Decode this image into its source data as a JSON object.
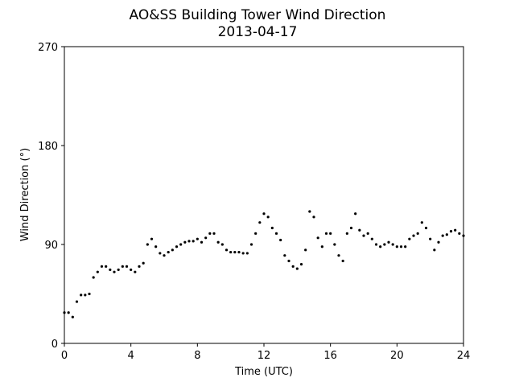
{
  "chart_data": {
    "type": "scatter",
    "title": "AO&SS Building Tower Wind Direction",
    "subtitle": "2013-04-17",
    "xlabel": "Time (UTC)",
    "ylabel": "Wind Direction (°)",
    "xlim": [
      0,
      24
    ],
    "ylim": [
      0,
      270
    ],
    "xticks": [
      0,
      4,
      8,
      12,
      16,
      20,
      24
    ],
    "yticks": [
      0,
      90,
      180,
      270
    ],
    "grid": false,
    "legend": "none",
    "marker_color": "#000000",
    "series": [
      {
        "x": [
          0.0,
          0.25,
          0.5,
          0.75,
          1.0,
          1.25,
          1.5,
          1.75,
          2.0,
          2.25,
          2.5,
          2.75,
          3.0,
          3.25,
          3.5,
          3.75,
          4.0,
          4.25,
          4.5,
          4.75,
          5.0,
          5.25,
          5.5,
          5.75,
          6.0,
          6.25,
          6.5,
          6.75,
          7.0,
          7.25,
          7.5,
          7.75,
          8.0,
          8.25,
          8.5,
          8.75,
          9.0,
          9.25,
          9.5,
          9.75,
          10.0,
          10.25,
          10.5,
          10.75,
          11.0,
          11.25,
          11.5,
          11.75,
          12.0,
          12.25,
          12.5,
          12.75,
          13.0,
          13.25,
          13.5,
          13.75,
          14.0,
          14.25,
          14.5,
          14.75,
          15.0,
          15.25,
          15.5,
          15.75,
          16.0,
          16.25,
          16.5,
          16.75,
          17.0,
          17.25,
          17.5,
          17.75,
          18.0,
          18.25,
          18.5,
          18.75,
          19.0,
          19.25,
          19.5,
          19.75,
          20.0,
          20.25,
          20.5,
          20.75,
          21.0,
          21.25,
          21.5,
          21.75,
          22.0,
          22.25,
          22.5,
          22.75,
          23.0,
          23.25,
          23.5,
          23.75,
          24.0
        ],
        "y": [
          28,
          28,
          24,
          38,
          44,
          44,
          45,
          60,
          65,
          70,
          70,
          67,
          65,
          67,
          70,
          70,
          67,
          65,
          70,
          73,
          90,
          95,
          88,
          82,
          80,
          83,
          85,
          88,
          90,
          92,
          93,
          93,
          95,
          92,
          96,
          100,
          100,
          92,
          90,
          85,
          83,
          83,
          83,
          82,
          82,
          90,
          100,
          110,
          118,
          115,
          105,
          100,
          94,
          80,
          75,
          70,
          68,
          72,
          85,
          120,
          115,
          96,
          88,
          100,
          100,
          90,
          80,
          75,
          100,
          105,
          118,
          103,
          98,
          100,
          95,
          90,
          88,
          90,
          92,
          90,
          88,
          88,
          88,
          95,
          98,
          100,
          110,
          105,
          95,
          85,
          92,
          98,
          99,
          102,
          103,
          100,
          98
        ]
      }
    ]
  }
}
